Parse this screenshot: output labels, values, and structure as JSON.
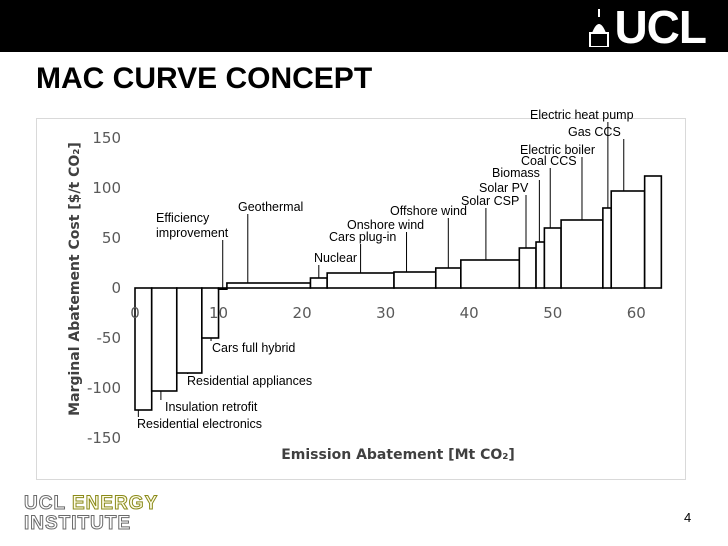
{
  "header": {
    "logo_text": "UCL",
    "crest_icon": "ucl-dome-icon"
  },
  "slide": {
    "title": "MAC CURVE CONCEPT",
    "page_number": "4"
  },
  "footer": {
    "logo_line1_a": "UCL",
    "logo_line1_b": "ENERGY",
    "logo_line2": "INSTITUTE",
    "colors": {
      "ucl": "#6b6b6b",
      "energy": "#8a8a1a"
    }
  },
  "chart_data": {
    "type": "bar",
    "subtype": "marginal-abatement-cost-curve",
    "xlabel": "Emission Abatement [Mt CO₂]",
    "ylabel": "Marginal Abatement Cost [$/t CO₂]",
    "xlim": [
      0,
      62
    ],
    "ylim": [
      -150,
      150
    ],
    "xticks": [
      0,
      10,
      20,
      30,
      40,
      50,
      60
    ],
    "yticks": [
      150,
      100,
      50,
      0,
      -50,
      -100,
      -150
    ],
    "grid": false,
    "bar_color": "#ffffff",
    "bar_edge_color": "#000000",
    "measures": [
      {
        "label": "Residential electronics",
        "start": 0,
        "width": 2,
        "cost": -122
      },
      {
        "label": "Insulation retrofit",
        "start": 2,
        "width": 3,
        "cost": -103
      },
      {
        "label": "Residential appliances",
        "start": 5,
        "width": 3,
        "cost": -85
      },
      {
        "label": "Cars full hybrid",
        "start": 8,
        "width": 2,
        "cost": -50
      },
      {
        "label": "Efficiency\nimprovement",
        "start": 10,
        "width": 1,
        "cost": 0
      },
      {
        "label": "Geothermal",
        "start": 11,
        "width": 10,
        "cost": 5
      },
      {
        "label": "Nuclear",
        "start": 21,
        "width": 2,
        "cost": 10
      },
      {
        "label": "Cars plug-in",
        "start": 23,
        "width": 8,
        "cost": 15
      },
      {
        "label": "Onshore wind",
        "start": 31,
        "width": 5,
        "cost": 16
      },
      {
        "label": "Offshore wind",
        "start": 36,
        "width": 3,
        "cost": 20
      },
      {
        "label": "Solar CSP",
        "start": 39,
        "width": 7,
        "cost": 28
      },
      {
        "label": "Solar PV",
        "start": 46,
        "width": 2,
        "cost": 40
      },
      {
        "label": "Biomass",
        "start": 48,
        "width": 1,
        "cost": 46
      },
      {
        "label": "Coal CCS",
        "start": 49,
        "width": 2,
        "cost": 60
      },
      {
        "label": "Electric boiler",
        "start": 51,
        "width": 5,
        "cost": 68
      },
      {
        "label": "Electric heat pump",
        "start": 56,
        "width": 1,
        "cost": 80
      },
      {
        "label": "Gas CCS",
        "start": 57,
        "width": 4,
        "cost": 97
      },
      {
        "label": "",
        "start": 61,
        "width": 2,
        "cost": 112
      }
    ]
  }
}
